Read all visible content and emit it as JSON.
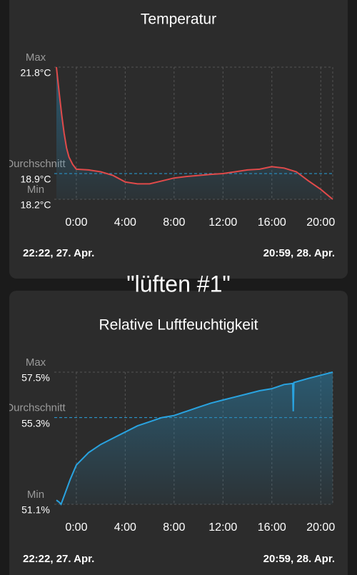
{
  "caption": "\"lüften #1\"",
  "chart_data": [
    {
      "type": "line",
      "title": "Temperatur",
      "start_label": "22:22,  27. Apr.",
      "end_label": "20:59,  28. Apr.",
      "x": [
        -1.63,
        -1.4,
        -1.2,
        -1.0,
        -0.8,
        -0.6,
        -0.3,
        0,
        1,
        2,
        3,
        4,
        5,
        6,
        7,
        8,
        9,
        10,
        11,
        12,
        13,
        14,
        15,
        16,
        17,
        18,
        19,
        20,
        20.98
      ],
      "series": [
        {
          "color": "#e04a4a",
          "values": [
            21.8,
            21.1,
            20.5,
            20.0,
            19.6,
            19.35,
            19.15,
            19.02,
            19.0,
            18.95,
            18.85,
            18.67,
            18.62,
            18.62,
            18.7,
            18.78,
            18.82,
            18.85,
            18.88,
            18.9,
            18.95,
            19.0,
            19.02,
            19.09,
            19.05,
            18.95,
            18.7,
            18.47,
            18.2
          ]
        }
      ],
      "area_color": "#2a7fa8",
      "avg_color": "#29a3e0",
      "xlim": [
        -1.63,
        20.98
      ],
      "xticks": [
        {
          "value": 0,
          "label": "0:00"
        },
        {
          "value": 4,
          "label": "4:00"
        },
        {
          "value": 8,
          "label": "8:00"
        },
        {
          "value": 12,
          "label": "12:00"
        },
        {
          "value": 16,
          "label": "16:00"
        },
        {
          "value": 20,
          "label": "20:00"
        }
      ],
      "ylim": [
        18.2,
        21.8
      ],
      "yticks": [
        {
          "value": 21.8,
          "label": "21.8°C"
        },
        {
          "value": 18.9,
          "label": "18.9°C"
        },
        {
          "value": 18.2,
          "label": "18.2°C"
        }
      ],
      "ytick_names": [
        "Max",
        "Durchschnitt",
        "Min"
      ]
    },
    {
      "type": "line",
      "title": "Relative Luftfeuchtigkeit",
      "start_label": "22:22,  27. Apr.",
      "end_label": "20:59,  28. Apr.",
      "x": [
        -1.63,
        -1.4,
        -1.25,
        -1.0,
        -0.5,
        0,
        1,
        2,
        3,
        4,
        5,
        6,
        7,
        8,
        9,
        10,
        11,
        12,
        13,
        14,
        15,
        16,
        17,
        17.7,
        17.75,
        17.8,
        19,
        20,
        20.98
      ],
      "series": [
        {
          "color": "#29a3e0",
          "values": [
            51.3,
            51.2,
            51.1,
            51.5,
            52.3,
            53.0,
            53.6,
            54.0,
            54.3,
            54.6,
            54.9,
            55.1,
            55.3,
            55.4,
            55.6,
            55.8,
            56.0,
            56.15,
            56.3,
            56.45,
            56.6,
            56.7,
            56.9,
            56.95,
            55.6,
            57.0,
            57.2,
            57.35,
            57.5
          ]
        }
      ],
      "area_color": "#2a7fa8",
      "avg_color": "#29a3e0",
      "xlim": [
        -1.63,
        20.98
      ],
      "xticks": [
        {
          "value": 0,
          "label": "0:00"
        },
        {
          "value": 4,
          "label": "4:00"
        },
        {
          "value": 8,
          "label": "8:00"
        },
        {
          "value": 12,
          "label": "12:00"
        },
        {
          "value": 16,
          "label": "16:00"
        },
        {
          "value": 20,
          "label": "20:00"
        }
      ],
      "ylim": [
        51.1,
        57.5
      ],
      "yticks": [
        {
          "value": 57.5,
          "label": "57.5%"
        },
        {
          "value": 55.3,
          "label": "55.3%"
        },
        {
          "value": 51.1,
          "label": "51.1%"
        }
      ],
      "ytick_names": [
        "Max",
        "Durchschnitt",
        "Min"
      ]
    }
  ]
}
